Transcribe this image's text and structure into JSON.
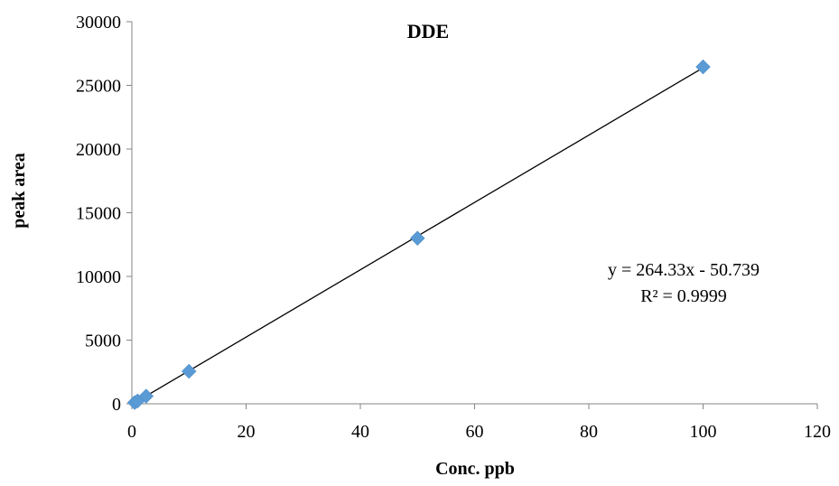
{
  "chart_data": {
    "type": "scatter",
    "title": "DDE",
    "xlabel": "Conc. ppb",
    "ylabel": "peak area",
    "xlim": [
      0,
      120
    ],
    "ylim": [
      0,
      30000
    ],
    "x_ticks": [
      0,
      20,
      40,
      60,
      80,
      100,
      120
    ],
    "y_ticks": [
      0,
      5000,
      10000,
      15000,
      20000,
      25000,
      30000
    ],
    "x_tick_labels": [
      "0",
      "20",
      "40",
      "60",
      "80",
      "100",
      "120"
    ],
    "y_tick_labels": [
      "0",
      "5000",
      "10000",
      "15000",
      "20000",
      "25000",
      "30000"
    ],
    "grid": false,
    "legend": "none",
    "series": [
      {
        "marker": "diamond",
        "color": "#5b9bd5",
        "points": [
          {
            "x": 0.5,
            "y": 100
          },
          {
            "x": 1,
            "y": 220
          },
          {
            "x": 2.5,
            "y": 600
          },
          {
            "x": 10,
            "y": 2550
          },
          {
            "x": 50,
            "y": 13000
          },
          {
            "x": 100,
            "y": 26450
          }
        ]
      }
    ],
    "trendline": {
      "type": "linear",
      "slope": 264.33,
      "intercept": -50.739,
      "x_range": [
        0.5,
        100
      ],
      "color": "#000000"
    },
    "annotations": {
      "equation": "y = 264.33x - 50.739",
      "r_squared": "R² = 0.9999"
    }
  }
}
